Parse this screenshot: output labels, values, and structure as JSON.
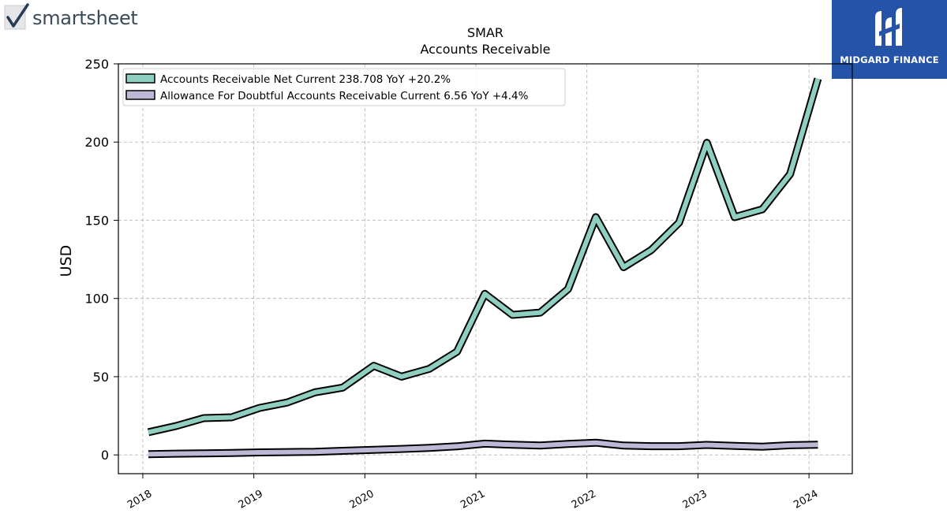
{
  "logos": {
    "left_text": "smartsheet",
    "right_text": "MIDGARD FINANCE",
    "right_bg": "#2553a8"
  },
  "chart_data": {
    "type": "line",
    "title": "SMAR",
    "subtitle": "Accounts Receivable",
    "xlabel": "",
    "ylabel": "USD",
    "ylim": [
      -12,
      250
    ],
    "yticks": [
      0,
      50,
      100,
      150,
      200,
      250
    ],
    "xticks": [
      "2018",
      "2019",
      "2020",
      "2021",
      "2022",
      "2023",
      "2024"
    ],
    "xlim": [
      2017.78,
      2024.39
    ],
    "grid": true,
    "legend_position": "top-left",
    "series": [
      {
        "name": "Accounts Receivable Net Current  238.708 YoY +20.2%",
        "color": "#8ecfc2",
        "x": [
          2018.05,
          2018.3,
          2018.55,
          2018.8,
          2019.05,
          2019.3,
          2019.55,
          2019.8,
          2020.08,
          2020.33,
          2020.58,
          2020.83,
          2021.08,
          2021.33,
          2021.58,
          2021.83,
          2022.08,
          2022.33,
          2022.58,
          2022.83,
          2023.08,
          2023.33,
          2023.58,
          2023.83,
          2024.08
        ],
        "y": [
          14.5,
          18.5,
          23.5,
          24,
          30,
          33.5,
          40,
          43,
          57,
          50,
          55,
          66,
          103,
          89.5,
          91,
          106,
          152,
          120,
          131,
          148.5,
          199.5,
          152,
          157,
          179.5,
          240.5
        ]
      },
      {
        "name": "Allowance For Doubtful Accounts Receivable Current  6.56 YoY +4.4%",
        "color": "#bcb9d6",
        "x": [
          2018.05,
          2018.3,
          2018.55,
          2018.8,
          2019.05,
          2019.3,
          2019.55,
          2019.8,
          2020.08,
          2020.33,
          2020.58,
          2020.83,
          2021.08,
          2021.33,
          2021.58,
          2021.83,
          2022.08,
          2022.33,
          2022.58,
          2022.83,
          2023.08,
          2023.33,
          2023.58,
          2023.83,
          2024.08
        ],
        "y": [
          0.5,
          0.8,
          1.0,
          1.2,
          1.6,
          1.8,
          2.0,
          2.6,
          3.2,
          3.8,
          4.5,
          5.5,
          7.2,
          6.5,
          6.0,
          7.0,
          7.8,
          6.0,
          5.6,
          5.6,
          6.4,
          5.8,
          5.3,
          6.2,
          6.56
        ]
      }
    ]
  }
}
